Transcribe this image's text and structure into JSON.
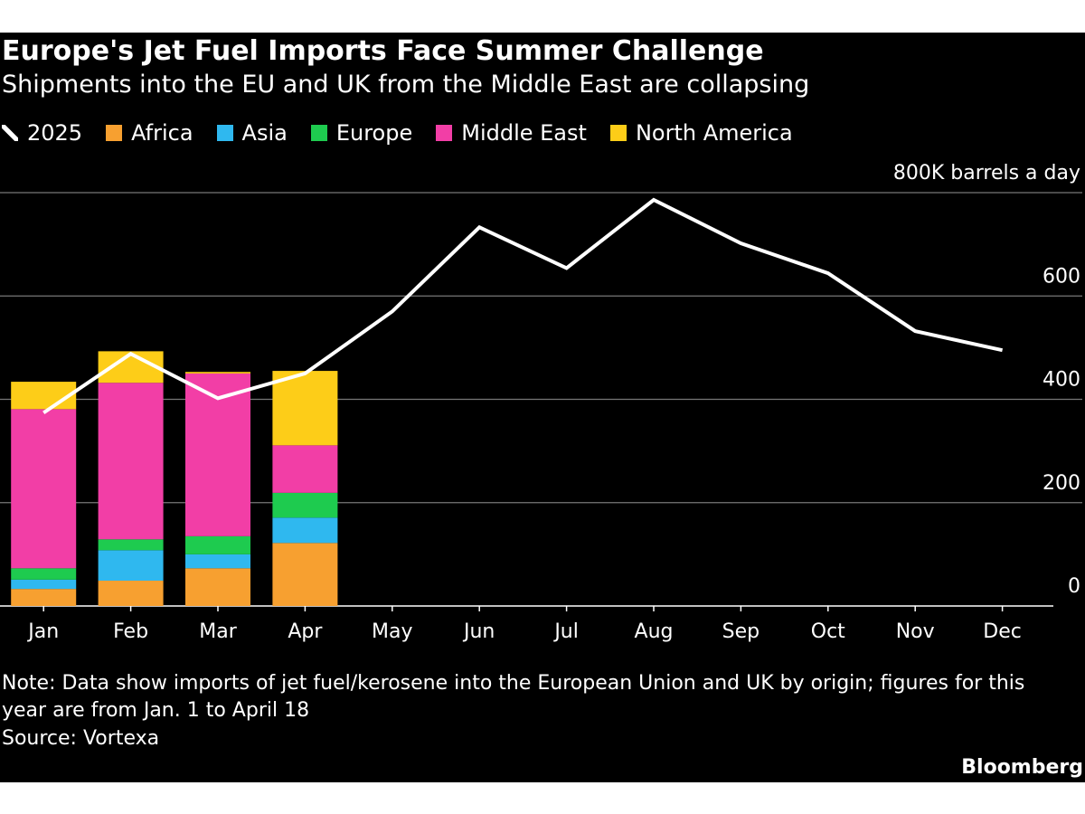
{
  "chart_data": {
    "type": "bar",
    "stacked": true,
    "title": "Europe's Jet Fuel Imports Face Summer Challenge",
    "subtitle": "Shipments into the EU and UK from the Middle East are collapsing",
    "categories": [
      "Jan",
      "Feb",
      "Mar",
      "Apr",
      "May",
      "Jun",
      "Jul",
      "Aug",
      "Sep",
      "Oct",
      "Nov",
      "Dec"
    ],
    "series": [
      {
        "name": "2025",
        "kind": "line",
        "color": "#ffffff",
        "values": [
          374,
          488,
          402,
          450,
          570,
          733,
          654,
          786,
          702,
          644,
          532,
          495
        ]
      },
      {
        "name": "Africa",
        "kind": "bar",
        "color": "#f7a030",
        "values": [
          33,
          49,
          73,
          122,
          null,
          null,
          null,
          null,
          null,
          null,
          null,
          null
        ]
      },
      {
        "name": "Asia",
        "kind": "bar",
        "color": "#2fb8ef",
        "values": [
          18,
          59,
          27,
          49,
          null,
          null,
          null,
          null,
          null,
          null,
          null,
          null
        ]
      },
      {
        "name": "Europe",
        "kind": "bar",
        "color": "#1ecb4f",
        "values": [
          22,
          21,
          35,
          48,
          null,
          null,
          null,
          null,
          null,
          null,
          null,
          null
        ]
      },
      {
        "name": "Middle East",
        "kind": "bar",
        "color": "#f23ea6",
        "values": [
          308,
          303,
          315,
          92,
          null,
          null,
          null,
          null,
          null,
          null,
          null,
          null
        ]
      },
      {
        "name": "North America",
        "kind": "bar",
        "color": "#fdcd18",
        "values": [
          53,
          61,
          3,
          144,
          null,
          null,
          null,
          null,
          null,
          null,
          null,
          null
        ]
      }
    ],
    "ylim": [
      0,
      800
    ],
    "yticks": [
      0,
      200,
      400,
      600,
      {
        "value": 800,
        "label": "800K barrels a day"
      }
    ],
    "grid": true,
    "note": "Note: Data show imports of jet fuel/kerosene into the European Union and UK by origin; figures for this year are from Jan. 1 to April 18",
    "source": "Source: Vortexa",
    "brand": "Bloomberg"
  }
}
